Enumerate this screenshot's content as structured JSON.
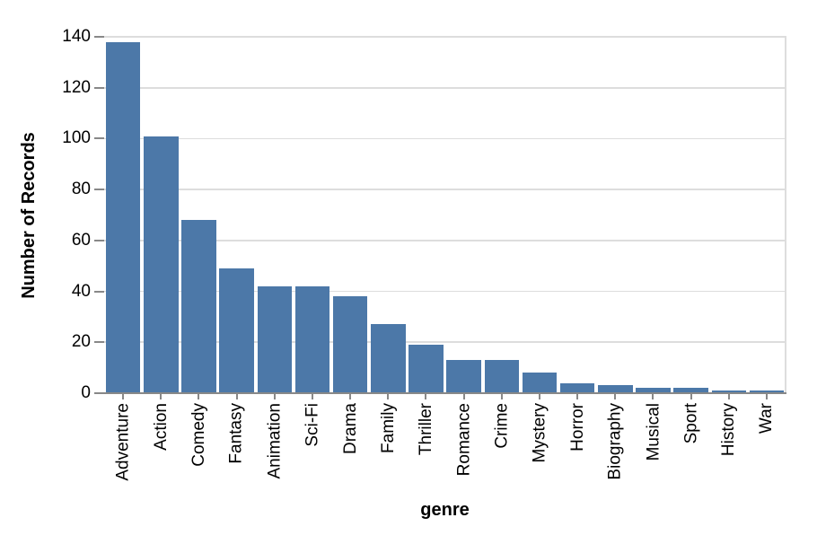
{
  "chart_data": {
    "type": "bar",
    "title": "",
    "xlabel": "genre",
    "ylabel": "Number of Records",
    "categories": [
      "Adventure",
      "Action",
      "Comedy",
      "Fantasy",
      "Animation",
      "Sci-Fi",
      "Drama",
      "Family",
      "Thriller",
      "Romance",
      "Crime",
      "Mystery",
      "Horror",
      "Biography",
      "Musical",
      "Sport",
      "History",
      "War"
    ],
    "values": [
      138,
      101,
      68,
      49,
      42,
      42,
      38,
      27,
      19,
      13,
      13,
      8,
      4,
      3,
      2,
      2,
      1,
      1
    ],
    "ylim": [
      0,
      140
    ],
    "yticks": [
      0,
      20,
      40,
      60,
      80,
      100,
      120,
      140
    ],
    "grid": true,
    "legend_position": "none",
    "colors": {
      "bar": "#4c78a8",
      "grid": "#dddddd",
      "axis": "#888888",
      "label": "#000000",
      "background": "#ffffff"
    }
  }
}
